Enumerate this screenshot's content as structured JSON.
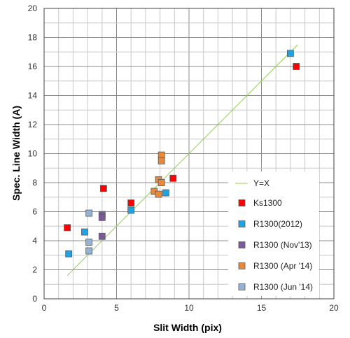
{
  "chart_data": {
    "type": "scatter",
    "xlabel": "Slit Width (pix)",
    "ylabel": "Spec. Line Width (A)",
    "xlim": [
      0,
      20
    ],
    "ylim": [
      0,
      20
    ],
    "x_ticks": [
      0,
      5,
      10,
      15,
      20
    ],
    "y_ticks": [
      0,
      2,
      4,
      6,
      8,
      10,
      12,
      14,
      16,
      18,
      20
    ],
    "grid": true,
    "legend_position": "bottom-right",
    "line": {
      "name": "Y=X",
      "color": "#92d050",
      "x": [
        1.6,
        17.5
      ],
      "y": [
        1.6,
        17.5
      ]
    },
    "series": [
      {
        "name": "Ks1300",
        "color": "#ff0000",
        "points": [
          [
            1.6,
            4.9
          ],
          [
            4.1,
            7.6
          ],
          [
            6.0,
            6.6
          ],
          [
            8.9,
            8.3
          ],
          [
            17.4,
            16.0
          ]
        ]
      },
      {
        "name": "R1300(2012)",
        "color": "#1fa3e5",
        "points": [
          [
            1.7,
            3.1
          ],
          [
            2.8,
            4.6
          ],
          [
            6.0,
            6.1
          ],
          [
            8.4,
            7.3
          ],
          [
            17.0,
            16.9
          ]
        ]
      },
      {
        "name": "R1300 (Nov'13)",
        "color": "#7b5a9c",
        "points": [
          [
            4.0,
            5.8
          ],
          [
            4.0,
            5.6
          ],
          [
            4.0,
            4.3
          ]
        ]
      },
      {
        "name": "R1300 (Apr '14)",
        "color": "#e6893d",
        "points": [
          [
            8.1,
            9.9
          ],
          [
            8.1,
            9.5
          ],
          [
            7.9,
            8.2
          ],
          [
            8.1,
            8.0
          ],
          [
            7.6,
            7.4
          ],
          [
            7.9,
            7.2
          ]
        ]
      },
      {
        "name": "R1300 (Jun '14)",
        "color": "#95b3d7",
        "points": [
          [
            3.1,
            5.9
          ],
          [
            3.1,
            3.9
          ],
          [
            3.1,
            3.3
          ]
        ]
      }
    ]
  }
}
